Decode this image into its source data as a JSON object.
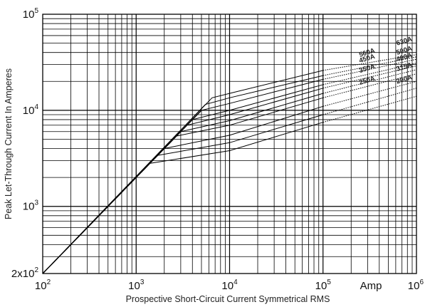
{
  "chart_data": {
    "type": "line",
    "title": "",
    "xlabel": "Prospective Short-Circuit Current Symmetrical RMS",
    "ylabel": "Peak Let-Through Current In Amperes",
    "x_scale": "log",
    "y_scale": "log",
    "xlim": [
      100,
      1000000
    ],
    "ylim": [
      200,
      100000
    ],
    "grid": true,
    "x_ticks": [
      {
        "base": "10",
        "exp": "2"
      },
      {
        "base": "10",
        "exp": "3"
      },
      {
        "base": "10",
        "exp": "4"
      },
      {
        "base": "10",
        "exp": "5"
      },
      {
        "base": "10",
        "exp": "6"
      }
    ],
    "x_unit_label": "Amp",
    "y_ticks": [
      {
        "base": "2x10",
        "exp": "2"
      },
      {
        "base": "10",
        "exp": "3"
      },
      {
        "base": "10",
        "exp": "4"
      },
      {
        "base": "10",
        "exp": "5"
      }
    ],
    "reference_line": {
      "name": "",
      "x": [
        100,
        5000
      ],
      "y": [
        200,
        10000
      ]
    },
    "series": [
      {
        "name": "630A",
        "x": [
          100,
          6500,
          10000,
          100000,
          1000000
        ],
        "y": [
          200,
          13500,
          15000,
          26000,
          38000
        ]
      },
      {
        "name": "560A",
        "x": [
          100,
          5500,
          10000,
          100000,
          1000000
        ],
        "y": [
          200,
          11500,
          13500,
          23000,
          36000
        ]
      },
      {
        "name": "500A",
        "x": [
          100,
          5000,
          10000,
          100000,
          1000000
        ],
        "y": [
          200,
          10000,
          11800,
          21000,
          34000
        ]
      },
      {
        "name": "450A",
        "x": [
          100,
          4000,
          10000,
          100000,
          1000000
        ],
        "y": [
          200,
          8000,
          10000,
          18500,
          31000
        ]
      },
      {
        "name": "400A",
        "x": [
          100,
          3500,
          10000,
          100000,
          1000000
        ],
        "y": [
          200,
          7000,
          9000,
          17000,
          29000
        ]
      },
      {
        "name": "350A",
        "x": [
          100,
          3000,
          10000,
          100000,
          1000000
        ],
        "y": [
          200,
          6000,
          7800,
          15000,
          26500
        ]
      },
      {
        "name": "315A",
        "x": [
          100,
          2700,
          10000,
          100000,
          1000000
        ],
        "y": [
          200,
          5400,
          7000,
          13500,
          24000
        ]
      },
      {
        "name": "250A",
        "x": [
          100,
          2000,
          10000,
          100000,
          1000000
        ],
        "y": [
          200,
          4000,
          5500,
          11000,
          20000
        ]
      },
      {
        "name": "200A",
        "x": [
          100,
          1700,
          10000,
          100000,
          1000000
        ],
        "y": [
          200,
          3400,
          4600,
          9000,
          17000
        ]
      },
      {
        "name": "",
        "x": [
          100,
          1400,
          10000,
          100000,
          1000000
        ],
        "y": [
          200,
          2800,
          3800,
          7500,
          14000
        ]
      }
    ],
    "labels": [
      {
        "text": "630A",
        "x": 750000,
        "y": 50000
      },
      {
        "text": "560A",
        "x": 300000,
        "y": 38000
      },
      {
        "text": "500A",
        "x": 750000,
        "y": 40000
      },
      {
        "text": "450A",
        "x": 300000,
        "y": 33000
      },
      {
        "text": "400A",
        "x": 750000,
        "y": 34000
      },
      {
        "text": "350A",
        "x": 300000,
        "y": 26000
      },
      {
        "text": "315A",
        "x": 750000,
        "y": 27000
      },
      {
        "text": "250A",
        "x": 300000,
        "y": 19500
      },
      {
        "text": "200A",
        "x": 750000,
        "y": 20000
      }
    ]
  }
}
